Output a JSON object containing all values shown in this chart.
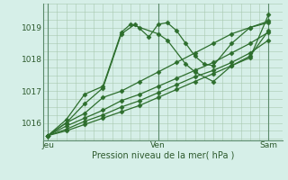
{
  "title": "",
  "xlabel": "Pression niveau de la mer( hPa )",
  "ylabel": "",
  "bg_color": "#d6efe8",
  "line_color": "#2d6e2d",
  "grid_color": "#a8c8b0",
  "ylim": [
    1015.45,
    1019.65
  ],
  "yticks": [
    1016,
    1017,
    1018,
    1019
  ],
  "xtick_labels": [
    "Jeu",
    "Ven",
    "Sam"
  ],
  "xtick_positions": [
    0,
    12,
    24
  ],
  "xlim": [
    -0.5,
    25.5
  ],
  "lines": [
    [
      0.0,
      1015.6,
      2,
      1016.0,
      4,
      1016.6,
      6,
      1017.1,
      8,
      1018.8,
      9.5,
      1019.1,
      11,
      1018.7,
      12,
      1019.1,
      13,
      1019.15,
      14,
      1018.9,
      15,
      1018.5,
      16,
      1018.1,
      17,
      1017.85,
      18,
      1017.8,
      20,
      1018.5,
      22,
      1019.0,
      24,
      1019.2
    ],
    [
      0.0,
      1015.6,
      2,
      1016.1,
      4,
      1016.9,
      6,
      1017.15,
      8,
      1018.85,
      9,
      1019.1,
      10,
      1019.0,
      12,
      1018.8,
      13,
      1018.6,
      15,
      1017.85,
      16,
      1017.6,
      18,
      1017.3,
      20,
      1017.8,
      22,
      1018.1,
      24,
      1018.9
    ],
    [
      0.0,
      1015.6,
      2,
      1016.0,
      4,
      1016.3,
      6,
      1016.8,
      8,
      1017.0,
      10,
      1017.3,
      12,
      1017.6,
      14,
      1017.9,
      16,
      1018.2,
      18,
      1018.5,
      20,
      1018.8,
      22,
      1019.0,
      24,
      1019.15
    ],
    [
      0.0,
      1015.6,
      2,
      1015.9,
      4,
      1016.15,
      6,
      1016.4,
      8,
      1016.7,
      10,
      1016.9,
      12,
      1017.15,
      14,
      1017.4,
      16,
      1017.65,
      18,
      1017.9,
      20,
      1018.2,
      22,
      1018.5,
      24,
      1018.85
    ],
    [
      0.0,
      1015.6,
      2,
      1015.8,
      4,
      1016.05,
      6,
      1016.25,
      8,
      1016.5,
      10,
      1016.7,
      12,
      1016.95,
      14,
      1017.2,
      16,
      1017.45,
      18,
      1017.65,
      20,
      1017.9,
      22,
      1018.2,
      24,
      1018.6
    ],
    [
      0.0,
      1015.6,
      2,
      1015.75,
      4,
      1015.95,
      6,
      1016.15,
      8,
      1016.35,
      10,
      1016.55,
      12,
      1016.8,
      14,
      1017.05,
      16,
      1017.3,
      18,
      1017.55,
      20,
      1017.8,
      22,
      1018.05,
      24,
      1019.4
    ]
  ],
  "vlines": [
    0,
    12,
    24
  ],
  "marker": "D",
  "markersize": 2.5
}
